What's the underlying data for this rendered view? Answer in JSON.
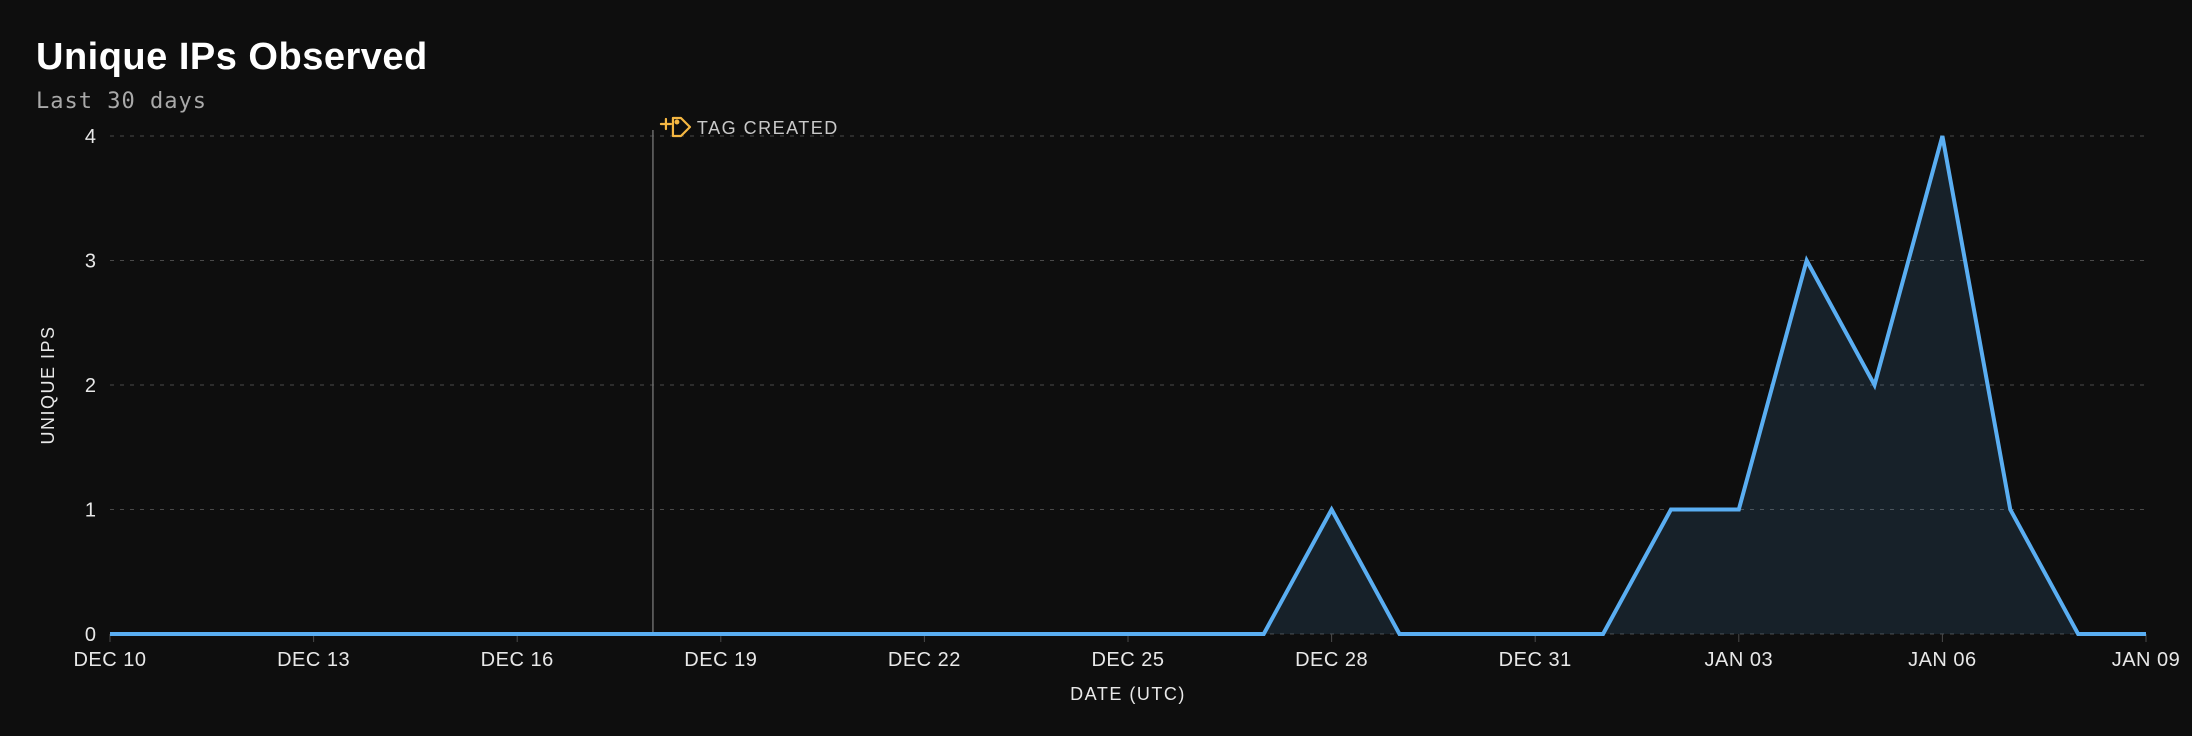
{
  "header": {
    "title": "Unique IPs Observed",
    "subtitle": "Last 30 days"
  },
  "chart": {
    "type": "line",
    "y_axis": {
      "title": "UNIQUE IPS",
      "lim": [
        0,
        4
      ],
      "tick_step": 1,
      "ticks": [
        0,
        1,
        2,
        3,
        4
      ]
    },
    "x_axis": {
      "title": "DATE (UTC)",
      "tick_labels": [
        "DEC 10",
        "DEC 13",
        "DEC 16",
        "DEC 19",
        "DEC 22",
        "DEC 25",
        "DEC 28",
        "DEC 31",
        "JAN 03",
        "JAN 06",
        "JAN 09"
      ],
      "tick_indices": [
        0,
        3,
        6,
        9,
        12,
        15,
        18,
        21,
        24,
        27,
        30
      ]
    },
    "series": {
      "color": "#5aaef2",
      "area_fill": "rgba(90,174,242,0.12)",
      "line_width": 4,
      "data": [
        {
          "i": 0,
          "y": 0
        },
        {
          "i": 1,
          "y": 0
        },
        {
          "i": 2,
          "y": 0
        },
        {
          "i": 3,
          "y": 0
        },
        {
          "i": 4,
          "y": 0
        },
        {
          "i": 5,
          "y": 0
        },
        {
          "i": 6,
          "y": 0
        },
        {
          "i": 7,
          "y": 0
        },
        {
          "i": 8,
          "y": 0
        },
        {
          "i": 9,
          "y": 0
        },
        {
          "i": 10,
          "y": 0
        },
        {
          "i": 11,
          "y": 0
        },
        {
          "i": 12,
          "y": 0
        },
        {
          "i": 13,
          "y": 0
        },
        {
          "i": 14,
          "y": 0
        },
        {
          "i": 15,
          "y": 0
        },
        {
          "i": 16,
          "y": 0
        },
        {
          "i": 17,
          "y": 0
        },
        {
          "i": 18,
          "y": 1
        },
        {
          "i": 19,
          "y": 0
        },
        {
          "i": 20,
          "y": 0
        },
        {
          "i": 21,
          "y": 0
        },
        {
          "i": 22,
          "y": 0
        },
        {
          "i": 23,
          "y": 1
        },
        {
          "i": 24,
          "y": 1
        },
        {
          "i": 25,
          "y": 3
        },
        {
          "i": 26,
          "y": 2
        },
        {
          "i": 27,
          "y": 4
        },
        {
          "i": 28,
          "y": 1
        },
        {
          "i": 29,
          "y": 0
        },
        {
          "i": 30,
          "y": 0
        }
      ]
    },
    "marker": {
      "label": "TAG CREATED",
      "x_index": 8,
      "icon_color": "#f5b742"
    },
    "style": {
      "background_color": "#0e0e0e",
      "grid_color": "#4a4a4a",
      "grid_dash": "4 6",
      "tick_label_color": "#e8e8e8",
      "axis_title_color": "#e8e8e8",
      "marker_line_color": "#6a6a6a",
      "marker_label_color": "#c9c9c9",
      "title_color": "#ffffff",
      "subtitle_color": "#a9a9a9",
      "title_fontsize": 38,
      "subtitle_fontsize": 22,
      "tick_fontsize": 20,
      "axis_title_fontsize": 18
    }
  }
}
